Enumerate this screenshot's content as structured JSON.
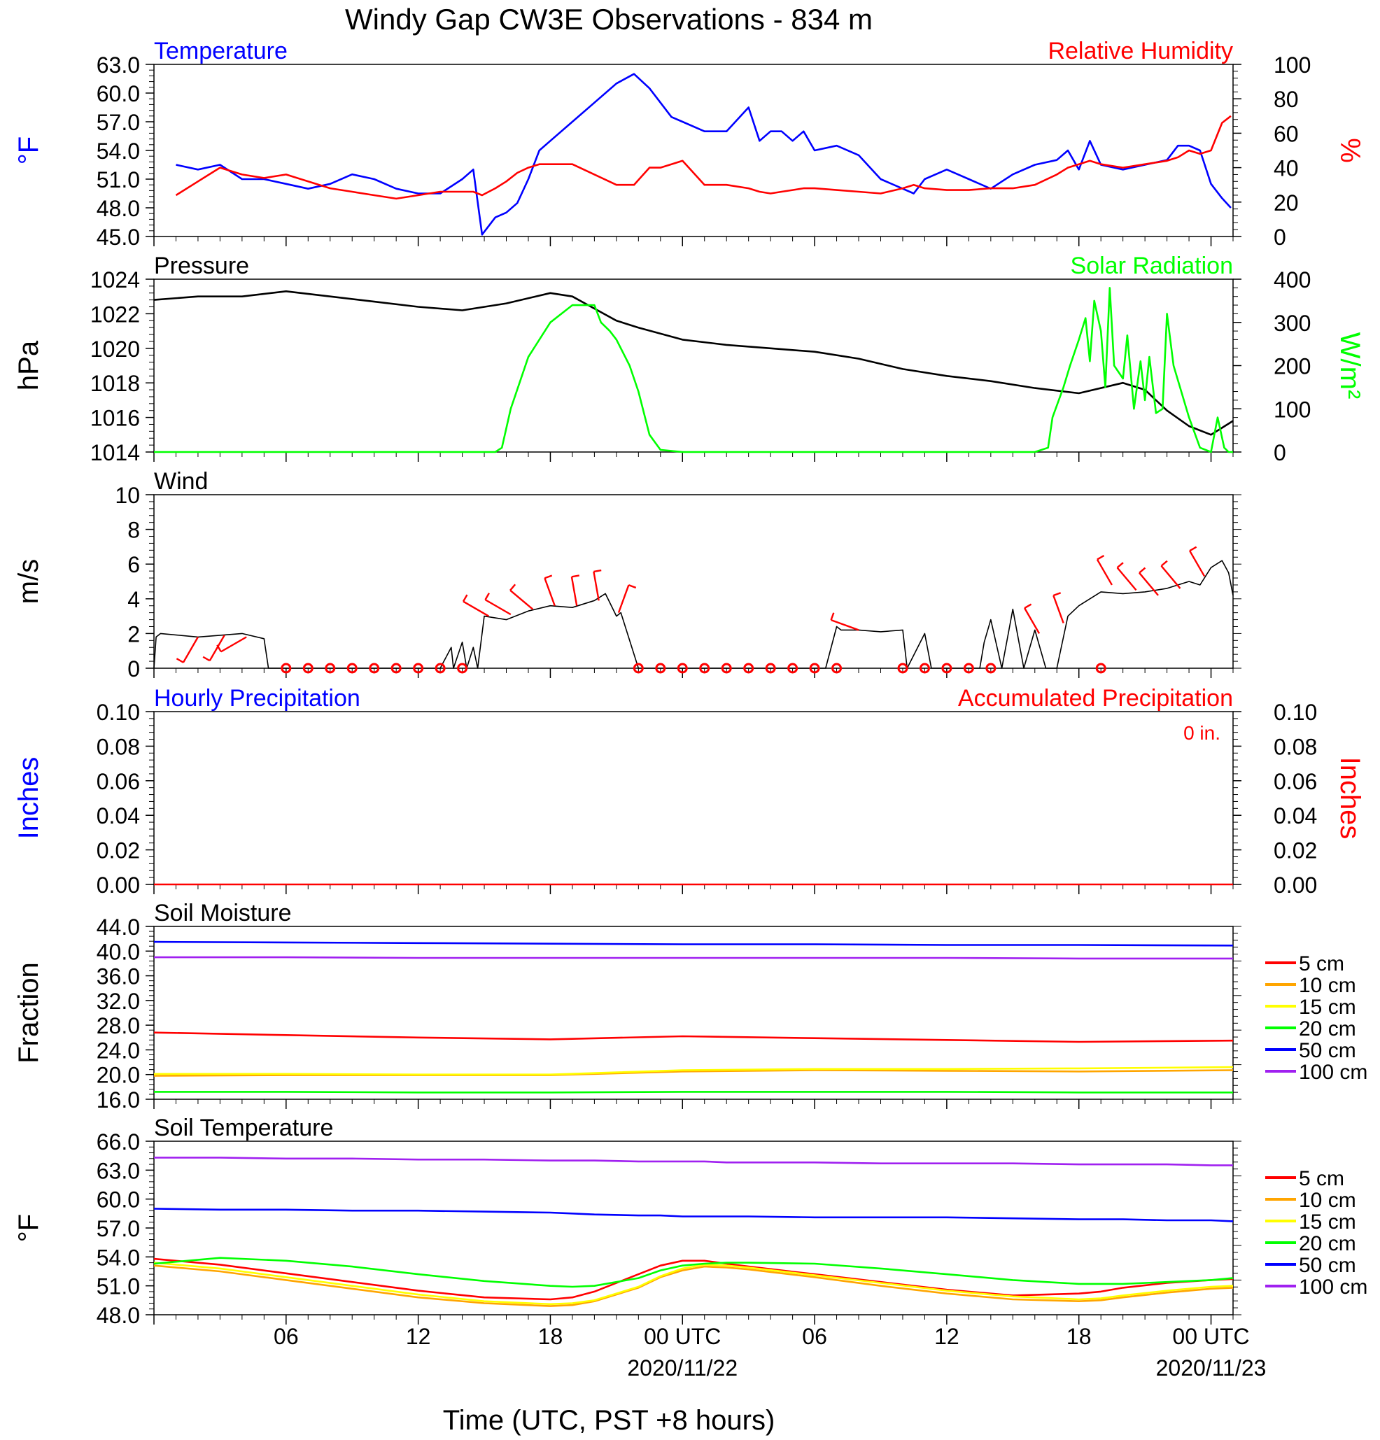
{
  "title": "Windy Gap CW3E Observations - 834 m",
  "xaxis": {
    "label": "Time (UTC, PST +8 hours)",
    "tick_labels": [
      "06",
      "12",
      "18",
      "00 UTC",
      "06",
      "12",
      "18",
      "00 UTC"
    ],
    "date_labels": [
      "2020/11/22",
      "2020/11/23"
    ]
  },
  "colors": {
    "temperature": "#0000ff",
    "humidity": "#ff0000",
    "pressure": "#000000",
    "solar": "#00ff00",
    "wind": "#000000",
    "barbs": "#ff0000",
    "d5": "#ff0000",
    "d10": "#ffa500",
    "d15": "#ffff00",
    "d20": "#00ff00",
    "d50": "#0000ff",
    "d100": "#a020f0"
  },
  "chart_data": [
    {
      "id": "temp-rh",
      "type": "line",
      "title_left": "Temperature",
      "title_right": "Relative Humidity",
      "ylabel_left": "°F",
      "ylabel_right": "%",
      "ylim_left": [
        45,
        63
      ],
      "ylim_right": [
        0,
        100
      ],
      "ticks_left": [
        "63.0",
        "60.0",
        "57.0",
        "54.0",
        "51.0",
        "48.0",
        "45.0"
      ],
      "ticks_right": [
        "100",
        "80",
        "60",
        "40",
        "20",
        "0"
      ],
      "x_hours": [
        1,
        2,
        3,
        4,
        5,
        6,
        7,
        8,
        9,
        10,
        11,
        12,
        13,
        14,
        14.5,
        14.9,
        15.5,
        16,
        16.5,
        17,
        17.5,
        18,
        19,
        20,
        21,
        21.8,
        22.5,
        23,
        23.5,
        24,
        25,
        26,
        27,
        27.5,
        28,
        28.5,
        29,
        29.5,
        30,
        31,
        32,
        33,
        34,
        34.5,
        35,
        36,
        37,
        38,
        39,
        40,
        41,
        41.5,
        42,
        42.5,
        43,
        44,
        45,
        46,
        46.5,
        47,
        47.5,
        48,
        48.5,
        48.9
      ],
      "series": [
        {
          "name": "Temperature",
          "axis": "left",
          "color_key": "temperature",
          "values": [
            52.5,
            52,
            52.5,
            51,
            51,
            50.5,
            50,
            50.5,
            51.5,
            51,
            50,
            49.5,
            49.5,
            51,
            52,
            45.2,
            47,
            47.5,
            48.5,
            51,
            54,
            55,
            57,
            59,
            61,
            62,
            60.5,
            59,
            57.5,
            57,
            56,
            56,
            58.5,
            55,
            56,
            56,
            55,
            56,
            54,
            54.5,
            53.5,
            51,
            50,
            49.5,
            51,
            52,
            51,
            50,
            51.5,
            52.5,
            53,
            54,
            52,
            55,
            52.5,
            52,
            52.5,
            53,
            54.5,
            54.5,
            54,
            50.5,
            49,
            48
          ]
        },
        {
          "name": "Relative Humidity",
          "axis": "right",
          "color_key": "humidity",
          "values": [
            24,
            32,
            40,
            36,
            34,
            36,
            32,
            28,
            26,
            24,
            22,
            24,
            26,
            26,
            26,
            24,
            28,
            32,
            37,
            40,
            42,
            42,
            42,
            36,
            30,
            30,
            40,
            40,
            42,
            44,
            30,
            30,
            28,
            26,
            25,
            26,
            27,
            28,
            28,
            27,
            26,
            25,
            28,
            30,
            28,
            27,
            27,
            28,
            28,
            30,
            36,
            40,
            42,
            44,
            42,
            40,
            42,
            44,
            46,
            50,
            48,
            50,
            66,
            70
          ]
        }
      ]
    },
    {
      "id": "pressure-solar",
      "type": "line",
      "title_left": "Pressure",
      "title_right": "Solar Radiation",
      "ylabel_left": "hPa",
      "ylabel_right": "W/m²",
      "ylim_left": [
        1014,
        1024
      ],
      "ylim_right": [
        0,
        400
      ],
      "ticks_left": [
        "1024",
        "1022",
        "1020",
        "1018",
        "1016",
        "1014"
      ],
      "ticks_right": [
        "400",
        "300",
        "200",
        "100",
        "0"
      ],
      "series": [
        {
          "name": "Pressure",
          "axis": "left",
          "color_key": "pressure",
          "x_hours": [
            0,
            2,
            4,
            6,
            8,
            10,
            12,
            14,
            16,
            18,
            19,
            20,
            21,
            22,
            24,
            26,
            28,
            30,
            32,
            34,
            36,
            38,
            40,
            42,
            44,
            45,
            46,
            47,
            48,
            48.5,
            49
          ],
          "values": [
            1022.8,
            1023,
            1023,
            1023.3,
            1023,
            1022.7,
            1022.4,
            1022.2,
            1022.6,
            1023.2,
            1023,
            1022.3,
            1021.6,
            1021.2,
            1020.5,
            1020.2,
            1020,
            1019.8,
            1019.4,
            1018.8,
            1018.4,
            1018.1,
            1017.7,
            1017.4,
            1018,
            1017.6,
            1016.4,
            1015.5,
            1015,
            1015.4,
            1015.8
          ]
        },
        {
          "name": "Solar Radiation",
          "axis": "right",
          "color_key": "solar",
          "x_hours": [
            0,
            15.5,
            15.8,
            16.2,
            17,
            18,
            19,
            20,
            20.3,
            20.7,
            21,
            21.4,
            21.6,
            22,
            22.5,
            23,
            24,
            40,
            40.6,
            40.8,
            41.3,
            41.6,
            42,
            42.3,
            42.5,
            42.7,
            43,
            43.2,
            43.4,
            43.6,
            44,
            44.2,
            44.5,
            44.8,
            45,
            45.2,
            45.5,
            45.8,
            46,
            46.3,
            47,
            47.5,
            48,
            48.3,
            48.6,
            48.8,
            49
          ],
          "values": [
            0,
            0,
            10,
            100,
            220,
            300,
            340,
            340,
            300,
            280,
            260,
            220,
            200,
            140,
            40,
            5,
            0,
            0,
            10,
            80,
            150,
            200,
            260,
            310,
            210,
            350,
            280,
            150,
            380,
            200,
            170,
            270,
            100,
            210,
            120,
            220,
            90,
            100,
            320,
            200,
            80,
            10,
            0,
            80,
            10,
            0,
            0
          ]
        }
      ]
    },
    {
      "id": "wind",
      "type": "line",
      "title_left": "Wind",
      "ylabel_left": "m/s",
      "ylim_left": [
        0,
        10
      ],
      "ticks_left": [
        "10",
        "8",
        "6",
        "4",
        "2",
        "0"
      ],
      "series": [
        {
          "name": "Wind",
          "axis": "left",
          "color_key": "wind",
          "x_hours": [
            0,
            0.1,
            0.3,
            2,
            4,
            5,
            5.2,
            13,
            13.5,
            13.6,
            14,
            14.2,
            14.5,
            14.7,
            15,
            16,
            17,
            18,
            19,
            20,
            20.5,
            21,
            21.2,
            21.5,
            22,
            30.5,
            31,
            31.2,
            32,
            33,
            34,
            34.2,
            35,
            35.3,
            37.5,
            37.7,
            38,
            38.5,
            39,
            39.5,
            40,
            40.5,
            41,
            41.5,
            42,
            43,
            44,
            45,
            46,
            47,
            47.5,
            48,
            48.5,
            48.8,
            49
          ],
          "values": [
            0,
            1.8,
            2,
            1.8,
            2,
            1.7,
            0,
            0,
            1.2,
            0,
            1.5,
            0,
            1.2,
            0,
            3,
            2.8,
            3.3,
            3.6,
            3.5,
            3.9,
            4.3,
            3,
            3.2,
            2,
            0,
            0,
            2.4,
            2.2,
            2.2,
            2.1,
            2.2,
            0,
            2,
            0,
            0,
            1.5,
            2.8,
            0,
            3.4,
            0,
            2.2,
            0,
            0,
            3,
            3.6,
            4.4,
            4.3,
            4.4,
            4.6,
            5,
            4.8,
            5.8,
            6.2,
            5.5,
            4.2
          ]
        }
      ],
      "calm_hours": [
        6,
        7,
        8,
        9,
        10,
        11,
        12,
        13,
        14,
        22,
        23,
        24,
        25,
        26,
        27,
        28,
        29,
        30,
        31,
        34,
        35,
        36,
        37,
        38,
        43
      ],
      "barbs": [
        {
          "hour": 2,
          "speed": 1.8,
          "dir_deg": 210
        },
        {
          "hour": 3.2,
          "speed": 1.9,
          "dir_deg": 210
        },
        {
          "hour": 4.2,
          "speed": 1.8,
          "dir_deg": 240
        },
        {
          "hour": 15.2,
          "speed": 3,
          "dir_deg": 300
        },
        {
          "hour": 16.2,
          "speed": 3.1,
          "dir_deg": 300
        },
        {
          "hour": 17.2,
          "speed": 3.4,
          "dir_deg": 310
        },
        {
          "hour": 18.2,
          "speed": 3.6,
          "dir_deg": 340
        },
        {
          "hour": 19.2,
          "speed": 3.6,
          "dir_deg": 350
        },
        {
          "hour": 20.2,
          "speed": 3.9,
          "dir_deg": 350
        },
        {
          "hour": 21.1,
          "speed": 3.2,
          "dir_deg": 20
        },
        {
          "hour": 32,
          "speed": 2.2,
          "dir_deg": 290
        },
        {
          "hour": 40.2,
          "speed": 2,
          "dir_deg": 330
        },
        {
          "hour": 41.3,
          "speed": 2.6,
          "dir_deg": 340
        },
        {
          "hour": 43.5,
          "speed": 4.8,
          "dir_deg": 330
        },
        {
          "hour": 44.6,
          "speed": 4.5,
          "dir_deg": 320
        },
        {
          "hour": 45.6,
          "speed": 4.2,
          "dir_deg": 320
        },
        {
          "hour": 46.6,
          "speed": 4.6,
          "dir_deg": 320
        },
        {
          "hour": 47.7,
          "speed": 5.3,
          "dir_deg": 330
        }
      ]
    },
    {
      "id": "precip",
      "type": "line",
      "title_left": "Hourly Precipitation",
      "title_right": "Accumulated Precipitation",
      "annotation": "0 in.",
      "ylabel_left": "Inches",
      "ylabel_right": "Inches",
      "ylim_left": [
        0,
        0.1
      ],
      "ylim_right": [
        0,
        0.1
      ],
      "ticks_left": [
        "0.10",
        "0.08",
        "0.06",
        "0.04",
        "0.02",
        "0.00"
      ],
      "ticks_right": [
        "0.10",
        "0.08",
        "0.06",
        "0.04",
        "0.02",
        "0.00"
      ],
      "series": [
        {
          "name": "Accumulated Precipitation",
          "axis": "right",
          "color_key": "humidity",
          "x_hours": [
            0,
            49
          ],
          "values": [
            0,
            0
          ]
        }
      ]
    },
    {
      "id": "soil-moisture",
      "type": "line",
      "title_left": "Soil Moisture",
      "ylabel_left": "Fraction",
      "ylim_left": [
        16,
        44
      ],
      "ticks_left": [
        "44.0",
        "40.0",
        "36.0",
        "32.0",
        "28.0",
        "24.0",
        "20.0",
        "16.0"
      ],
      "legend": [
        "5 cm",
        "10 cm",
        "15 cm",
        "20 cm",
        "50 cm",
        "100 cm"
      ],
      "x_hours": [
        0,
        6,
        12,
        18,
        24,
        30,
        36,
        42,
        49
      ],
      "series": [
        {
          "name": "5 cm",
          "color_key": "d5",
          "values": [
            26.8,
            26.4,
            26.0,
            25.7,
            26.2,
            25.9,
            25.6,
            25.3,
            25.5
          ]
        },
        {
          "name": "10 cm",
          "color_key": "d10",
          "values": [
            19.8,
            19.9,
            19.9,
            19.9,
            20.5,
            20.7,
            20.6,
            20.5,
            20.7
          ]
        },
        {
          "name": "15 cm",
          "color_key": "d15",
          "values": [
            20.1,
            20.1,
            20.0,
            20.0,
            20.7,
            20.9,
            20.9,
            21.0,
            21.2
          ]
        },
        {
          "name": "20 cm",
          "color_key": "d20",
          "values": [
            17.2,
            17.2,
            17.1,
            17.1,
            17.2,
            17.2,
            17.2,
            17.1,
            17.1
          ]
        },
        {
          "name": "50 cm",
          "color_key": "d50",
          "values": [
            41.5,
            41.4,
            41.3,
            41.2,
            41.1,
            41.1,
            41.0,
            41.0,
            40.9
          ]
        },
        {
          "name": "100 cm",
          "color_key": "d100",
          "values": [
            39.0,
            39.0,
            38.9,
            38.9,
            38.9,
            38.9,
            38.9,
            38.8,
            38.8
          ]
        }
      ]
    },
    {
      "id": "soil-temp",
      "type": "line",
      "title_left": "Soil Temperature",
      "ylabel_left": "°F",
      "ylim_left": [
        48,
        66
      ],
      "ticks_left": [
        "66.0",
        "63.0",
        "60.0",
        "57.0",
        "54.0",
        "51.0",
        "48.0"
      ],
      "legend": [
        "5 cm",
        "10 cm",
        "15 cm",
        "20 cm",
        "50 cm",
        "100 cm"
      ],
      "x_hours": [
        0,
        3,
        6,
        9,
        12,
        15,
        18,
        19,
        20,
        22,
        23,
        24,
        25,
        26,
        27,
        30,
        33,
        36,
        39,
        42,
        43,
        44,
        46,
        48,
        49
      ],
      "series": [
        {
          "name": "5 cm",
          "color_key": "d5",
          "values": [
            53.8,
            53.2,
            52.3,
            51.4,
            50.5,
            49.8,
            49.6,
            49.8,
            50.4,
            52.2,
            53.1,
            53.6,
            53.6,
            53.3,
            53.0,
            52.2,
            51.4,
            50.6,
            50.0,
            50.2,
            50.4,
            50.8,
            51.3,
            51.6,
            51.7
          ]
        },
        {
          "name": "10 cm",
          "color_key": "d10",
          "values": [
            53.1,
            52.5,
            51.6,
            50.7,
            49.8,
            49.2,
            48.9,
            49.0,
            49.4,
            50.8,
            51.9,
            52.6,
            53.0,
            52.9,
            52.7,
            51.9,
            51.0,
            50.2,
            49.6,
            49.4,
            49.5,
            49.8,
            50.3,
            50.7,
            50.8
          ]
        },
        {
          "name": "15 cm",
          "color_key": "d15",
          "values": [
            53.4,
            52.8,
            51.9,
            51.0,
            50.1,
            49.4,
            49.1,
            49.2,
            49.5,
            50.9,
            52.0,
            52.8,
            53.2,
            53.1,
            52.9,
            52.1,
            51.3,
            50.5,
            49.9,
            49.6,
            49.7,
            50.0,
            50.5,
            50.9,
            51.0
          ]
        },
        {
          "name": "20 cm",
          "color_key": "d20",
          "values": [
            53.3,
            53.9,
            53.6,
            53.0,
            52.2,
            51.5,
            51.0,
            50.9,
            51.0,
            51.8,
            52.6,
            53.1,
            53.3,
            53.4,
            53.4,
            53.3,
            52.8,
            52.2,
            51.6,
            51.2,
            51.2,
            51.2,
            51.4,
            51.6,
            51.8
          ]
        },
        {
          "name": "50 cm",
          "color_key": "d50",
          "values": [
            59.0,
            58.9,
            58.9,
            58.8,
            58.8,
            58.7,
            58.6,
            58.5,
            58.4,
            58.3,
            58.3,
            58.2,
            58.2,
            58.2,
            58.2,
            58.1,
            58.1,
            58.1,
            58.0,
            57.9,
            57.9,
            57.9,
            57.8,
            57.8,
            57.7
          ]
        },
        {
          "name": "100 cm",
          "color_key": "d100",
          "values": [
            64.3,
            64.3,
            64.2,
            64.2,
            64.1,
            64.1,
            64.0,
            64.0,
            64.0,
            63.9,
            63.9,
            63.9,
            63.9,
            63.8,
            63.8,
            63.8,
            63.7,
            63.7,
            63.7,
            63.6,
            63.6,
            63.6,
            63.6,
            63.5,
            63.5
          ]
        }
      ]
    }
  ]
}
